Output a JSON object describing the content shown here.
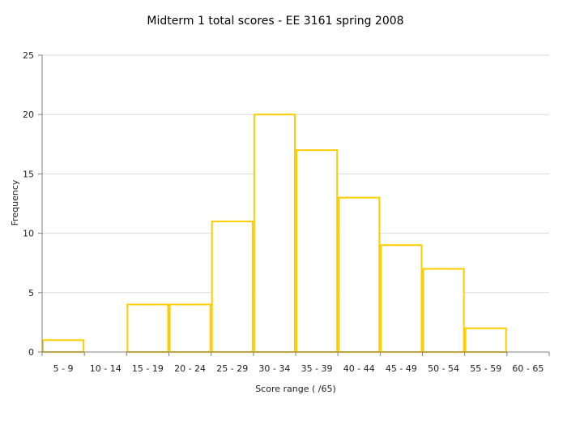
{
  "chart_data": {
    "type": "bar",
    "title": "Midterm 1 total scores - EE 3161 spring 2008",
    "xlabel": "Score range ( /65)",
    "ylabel": "Frequency",
    "categories": [
      "5 - 9",
      "10 - 14",
      "15 - 19",
      "20 - 24",
      "25 - 29",
      "30 - 34",
      "35 - 39",
      "40 - 44",
      "45 - 49",
      "50 - 54",
      "55 - 59",
      "60 - 65"
    ],
    "values": [
      1,
      0,
      4,
      4,
      11,
      20,
      17,
      13,
      9,
      7,
      2,
      0
    ],
    "ylim": [
      0,
      25
    ],
    "yticks": [
      0,
      5,
      10,
      15,
      20,
      25
    ],
    "grid": true,
    "bar_color": "#FFCC00",
    "grid_color": "#d9d9d9"
  }
}
